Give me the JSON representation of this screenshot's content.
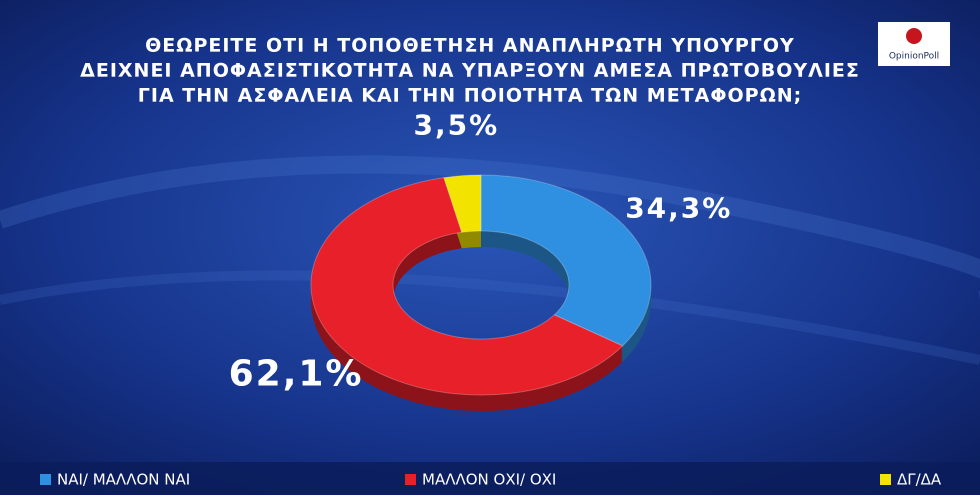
{
  "chart_data": {
    "type": "pie",
    "donut": true,
    "title": [
      "ΘΕΩΡΕΙΤΕ ΟΤΙ Η ΤΟΠΟΘΕΤΗΣΗ ΑΝΑΠΛΗΡΩΤΗ ΥΠΟΥΡΓΟΥ",
      "ΔΕΙΧΝΕΙ ΑΠΟΦΑΣΙΣΤΙΚΟΤΗΤΑ ΝΑ ΥΠΑΡΞΟΥΝ ΑΜΕΣΑ ΠΡΩΤΟΒΟΥΛΙΕΣ",
      "ΓΙΑ ΤΗΝ ΑΣΦΑΛΕΙΑ ΚΑΙ ΤΗΝ ΠΟΙΟΤΗΤΑ ΤΩΝ ΜΕΤΑΦΟΡΩΝ;"
    ],
    "categories": [
      "ΝΑΙ/ ΜΑΛΛΟΝ ΝΑΙ",
      "ΜΑΛΛΟΝ ΟΧΙ/ ΟΧΙ",
      "ΔΓ/ΔΑ"
    ],
    "values": [
      34.3,
      62.1,
      3.5
    ],
    "value_labels": [
      "34,3%",
      "62,1%",
      "3,5%"
    ],
    "colors": [
      "#2f8fe0",
      "#e8202a",
      "#f2e400"
    ]
  },
  "logo": "OpinionPoll"
}
